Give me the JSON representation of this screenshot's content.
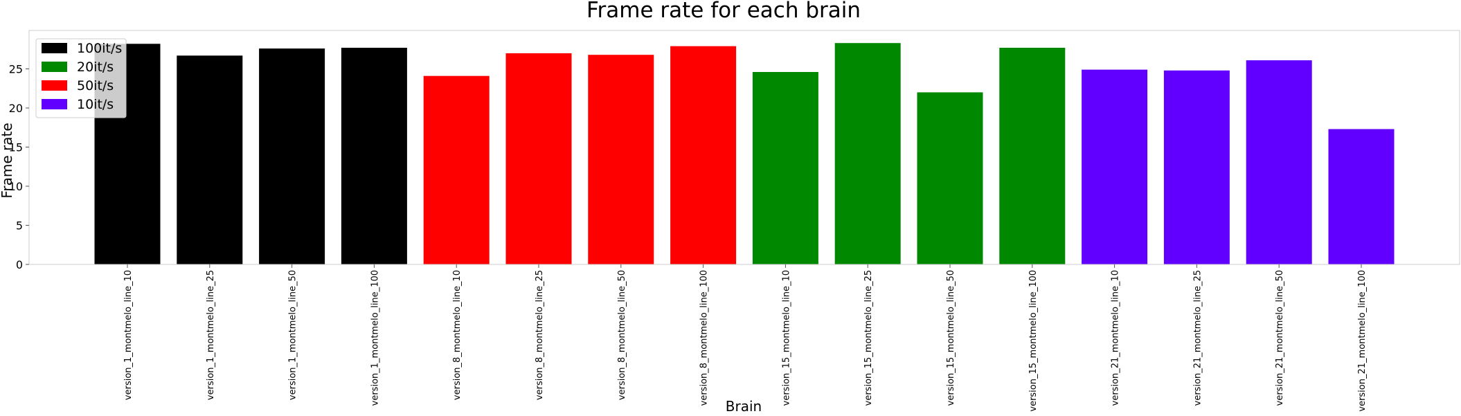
{
  "chart_data": {
    "type": "bar",
    "title": "Frame rate for each brain",
    "xlabel": "Brain",
    "ylabel": "Frame rate",
    "ylim": [
      0,
      30
    ],
    "yticks": [
      0,
      5,
      10,
      15,
      20,
      25
    ],
    "grid": false,
    "legend_position": "top-left",
    "categories": [
      "version_1_montmelo_line_10",
      "version_1_montmelo_line_25",
      "version_1_montmelo_line_50",
      "version_1_montmelo_line_100",
      "version_8_montmelo_line_10",
      "version_8_montmelo_line_25",
      "version_8_montmelo_line_50",
      "version_8_montmelo_line_100",
      "version_15_montmelo_line_10",
      "version_15_montmelo_line_25",
      "version_15_montmelo_line_50",
      "version_15_montmelo_line_100",
      "version_21_montmelo_line_10",
      "version_21_montmelo_line_25",
      "version_21_montmelo_line_50",
      "version_21_montmelo_line_100"
    ],
    "values": [
      28.2,
      26.7,
      27.6,
      27.7,
      24.1,
      27.0,
      26.8,
      27.9,
      24.6,
      28.3,
      22.0,
      27.7,
      24.9,
      24.8,
      26.1,
      17.3
    ],
    "bar_colors": [
      "#000000",
      "#000000",
      "#000000",
      "#000000",
      "#ff0000",
      "#ff0000",
      "#ff0000",
      "#ff0000",
      "#008800",
      "#008800",
      "#008800",
      "#008800",
      "#6200ff",
      "#6200ff",
      "#6200ff",
      "#6200ff"
    ],
    "legend": [
      {
        "label": "100it/s",
        "color": "#000000"
      },
      {
        "label": "20it/s",
        "color": "#008800"
      },
      {
        "label": "50it/s",
        "color": "#ff0000"
      },
      {
        "label": "10it/s",
        "color": "#6200ff"
      }
    ]
  }
}
